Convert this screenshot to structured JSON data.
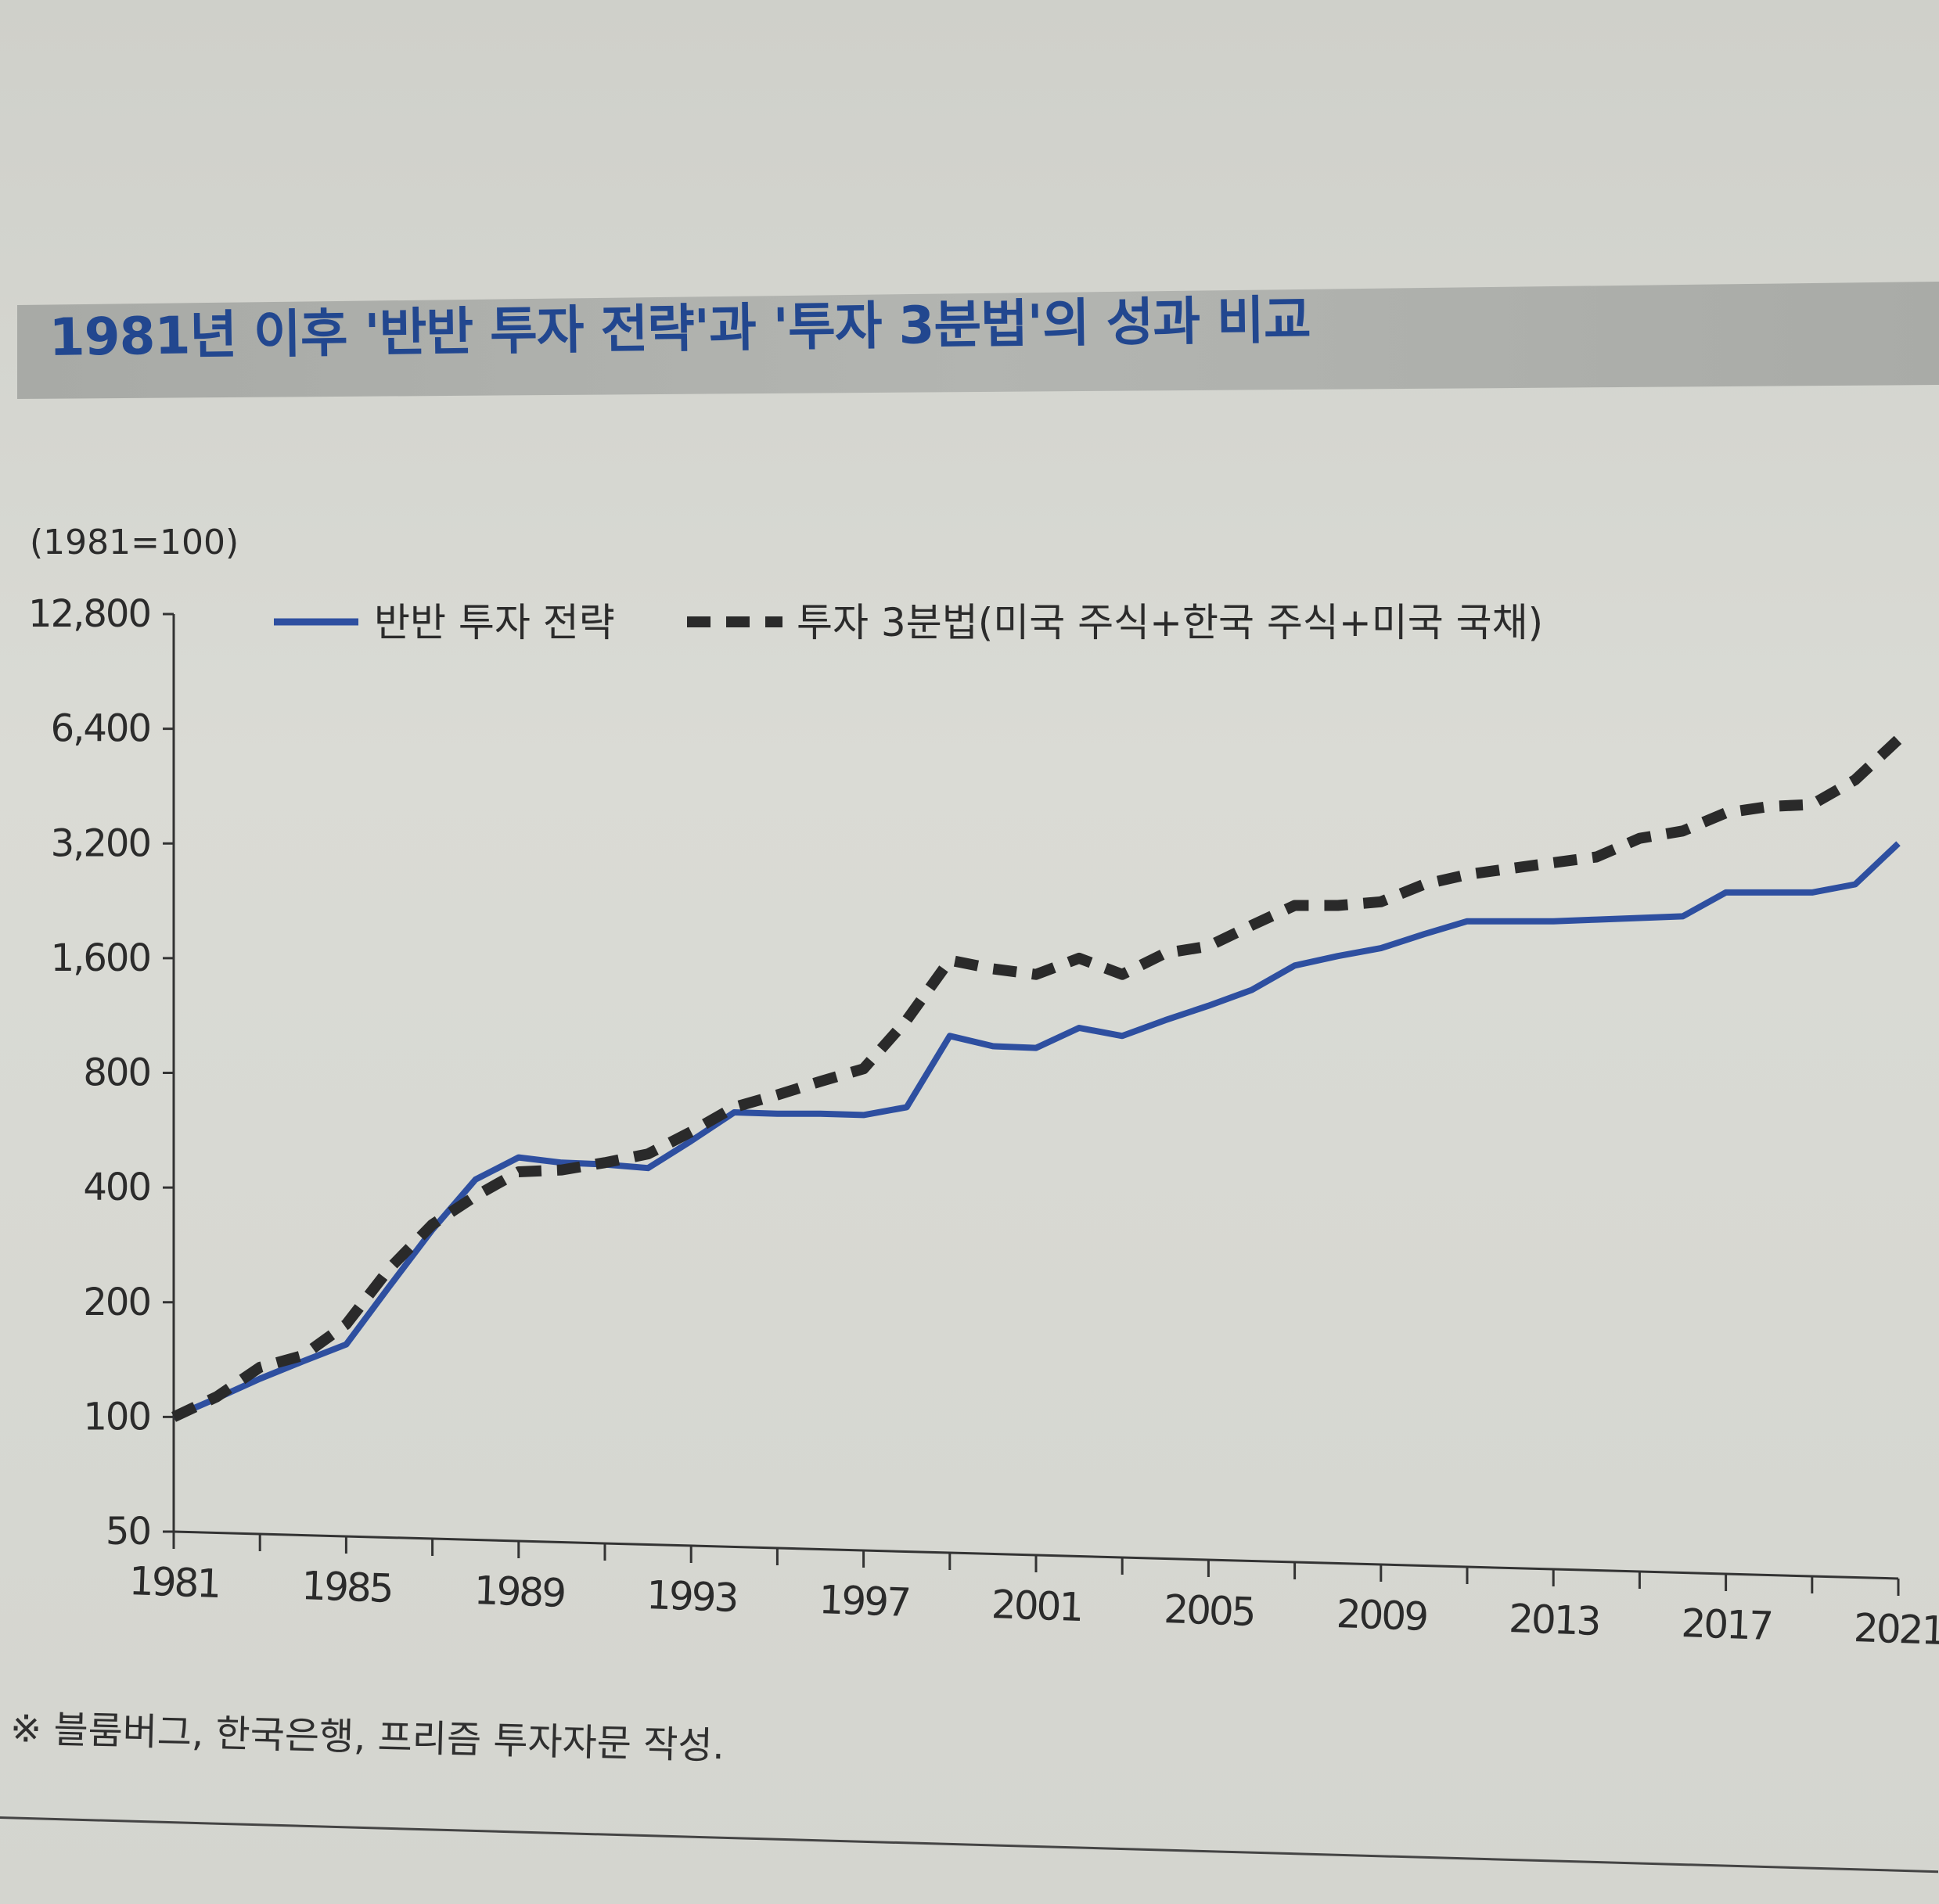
{
  "title": "1981년 이후 '반반 투자 전략'과 '투자 3분법'의 성과 비교",
  "footnote": "※ 블룸버그, 한국은행, 프리즘 투자자문 작성.",
  "chart_data": {
    "type": "line",
    "y_scale": "log2",
    "unit_label": "(1981=100)",
    "x": [
      1981,
      1982,
      1983,
      1984,
      1985,
      1986,
      1987,
      1988,
      1989,
      1990,
      1991,
      1992,
      1993,
      1994,
      1995,
      1996,
      1997,
      1998,
      1999,
      2000,
      2001,
      2002,
      2003,
      2004,
      2005,
      2006,
      2007,
      2008,
      2009,
      2010,
      2011,
      2012,
      2013,
      2014,
      2015,
      2016,
      2017,
      2018,
      2019,
      2020,
      2021
    ],
    "x_ticks": [
      1981,
      1985,
      1989,
      1993,
      1997,
      2001,
      2005,
      2009,
      2013,
      2017,
      2021
    ],
    "y_ticks": [
      50,
      100,
      200,
      400,
      800,
      1600,
      3200,
      6400,
      12800
    ],
    "y_tick_labels": [
      "50",
      "100",
      "200",
      "400",
      "800",
      "1,600",
      "3,200",
      "6,400",
      "12,800"
    ],
    "ylim": [
      50,
      12800
    ],
    "legend": {
      "position": "top"
    },
    "series": [
      {
        "name": "반반 투자 전략",
        "style": "solid",
        "color": "#2e4fa0",
        "values": [
          100,
          112,
          126,
          140,
          155,
          220,
          310,
          420,
          480,
          465,
          460,
          450,
          530,
          630,
          625,
          625,
          620,
          650,
          1000,
          940,
          930,
          1050,
          1000,
          1100,
          1200,
          1320,
          1530,
          1620,
          1700,
          1850,
          2000,
          2000,
          2000,
          2020,
          2040,
          2060,
          2380,
          2380,
          2380,
          2500,
          3200
        ]
      },
      {
        "name": "투자 3분법(미국 주식+한국 주식+미국 국채)",
        "style": "dashed",
        "color": "#2a2a2a",
        "values": [
          100,
          113,
          135,
          145,
          175,
          245,
          320,
          380,
          440,
          445,
          465,
          490,
          560,
          650,
          700,
          760,
          820,
          1100,
          1580,
          1500,
          1450,
          1600,
          1450,
          1650,
          1720,
          1950,
          2200,
          2200,
          2250,
          2500,
          2650,
          2750,
          2850,
          2950,
          3300,
          3450,
          3850,
          4000,
          4050,
          4700,
          6000
        ]
      }
    ]
  },
  "colors": {
    "band": "#b3b5b1",
    "title": "#22478f",
    "axis": "#333333"
  }
}
